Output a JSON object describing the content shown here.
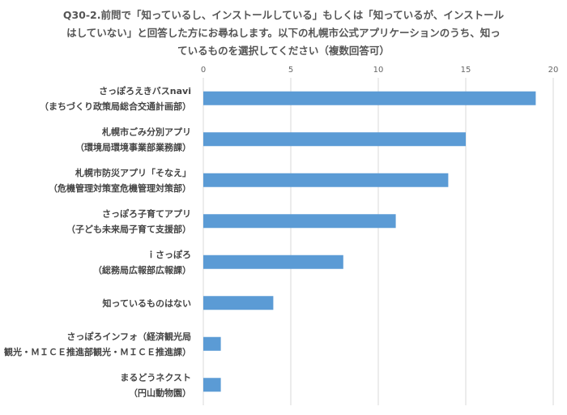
{
  "chart_data": {
    "type": "bar",
    "orientation": "horizontal",
    "title_lines": [
      "Q30-2.前問で「知っているし、インストールしている」もしくは「知っているが、インストール",
      "はしていない」と回答した方にお尋ねします。以下の札幌市公式アプリケーションのうち、知っ",
      "ているものを選択してください（複数回答可）"
    ],
    "categories": [
      [
        "さっぽろえきバスnavi",
        "（まちづくり政策局総合交通計画部）"
      ],
      [
        "札幌市ごみ分別アプリ",
        "（環境局環境事業部業務課）"
      ],
      [
        "札幌市防災アプリ「そなえ」",
        "（危機管理対策室危機管理対策部）"
      ],
      [
        "さっぽろ子育てアプリ",
        "（子ども未来局子育て支援部）"
      ],
      [
        "ｉさっぽろ",
        "（総務局広報部広報課）"
      ],
      [
        "知っているものはない"
      ],
      [
        "さっぽろインフォ（経済観光局",
        "観光・ＭＩＣＥ推進部観光・ＭＩＣＥ推進課）"
      ],
      [
        "まるどうネクスト",
        "（円山動物園）"
      ]
    ],
    "values": [
      19,
      15,
      14,
      11,
      8,
      4,
      1,
      1
    ],
    "xlim": [
      0,
      20
    ],
    "xticks": [
      "0",
      "5",
      "10",
      "15",
      "20"
    ],
    "bar_color": "#5b9bd5",
    "grid": true,
    "legend": "none"
  }
}
